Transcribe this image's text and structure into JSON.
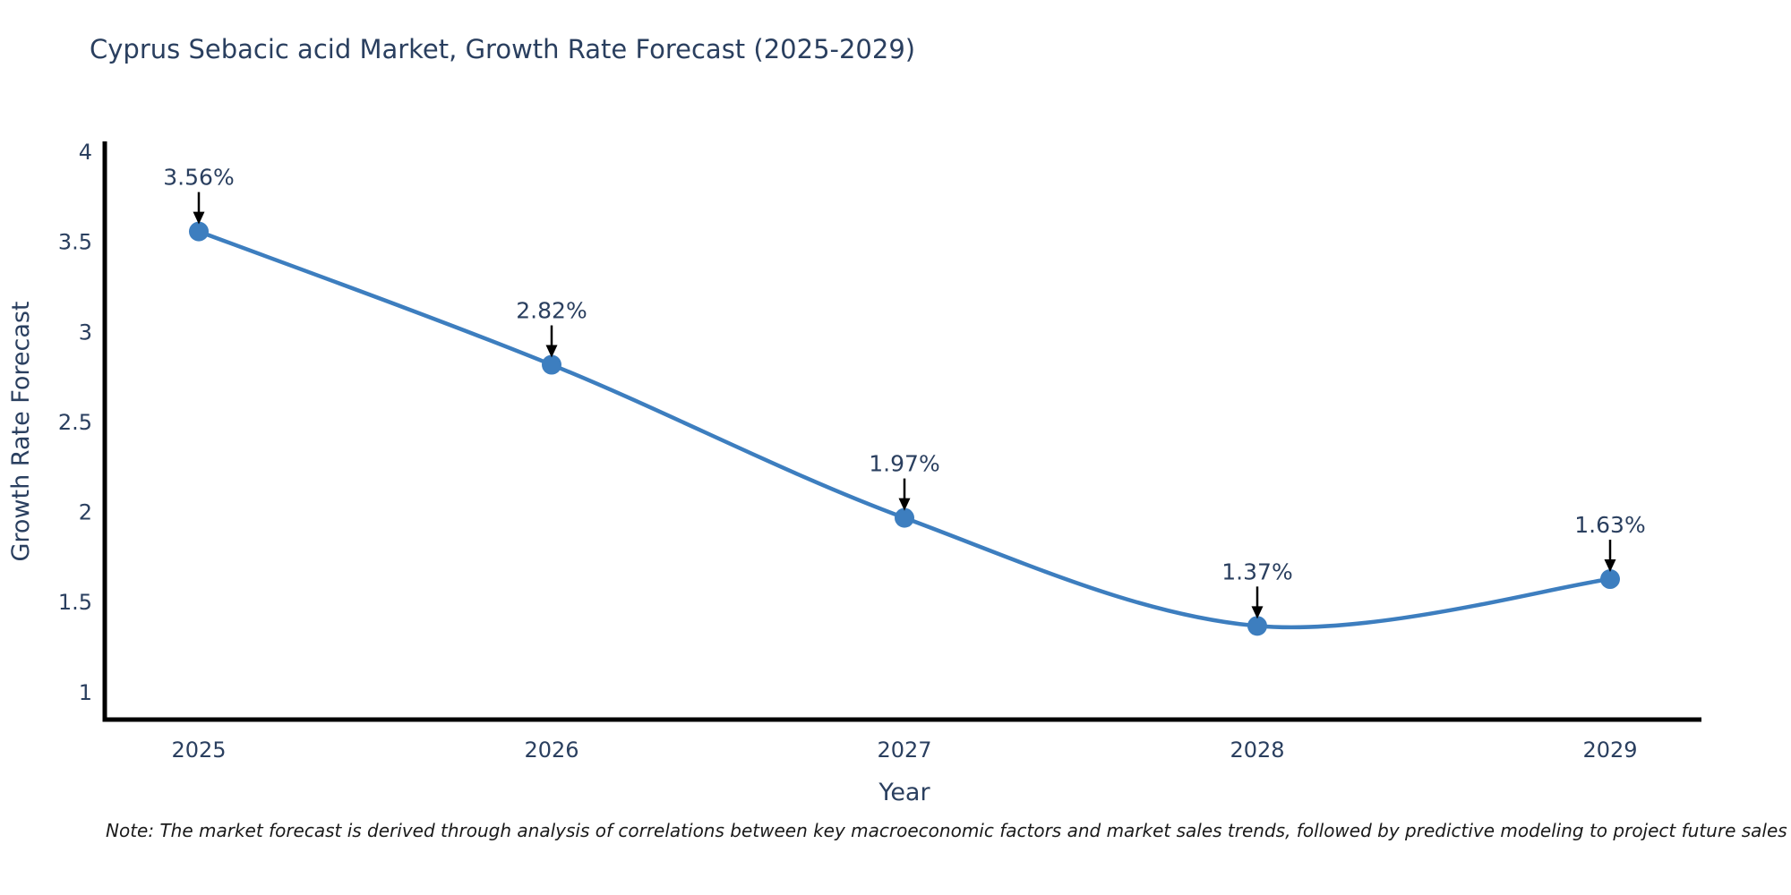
{
  "figure": {
    "title": "Cyprus Sebacic acid Market, Growth Rate Forecast (2025-2029)",
    "note": "Note: The market forecast is derived through analysis of correlations between key macroeconomic factors and market sales trends, followed by predictive modeling to project future sales"
  },
  "chart_data": {
    "type": "line",
    "line_shape": "spline",
    "title": "Cyprus Sebacic acid Market, Growth Rate Forecast (2025-2029)",
    "xlabel": "Year",
    "ylabel": "Growth Rate Forecast",
    "x": [
      2025,
      2026,
      2027,
      2028,
      2029
    ],
    "values": [
      3.56,
      2.82,
      1.97,
      1.37,
      1.63
    ],
    "point_labels": [
      "3.56%",
      "2.82%",
      "1.97%",
      "1.37%",
      "1.63%"
    ],
    "xticks": [
      "2025",
      "2026",
      "2027",
      "2028",
      "2029"
    ],
    "yticks": [
      4,
      3.5,
      3,
      2.5,
      2,
      1.5,
      1
    ],
    "ylim": [
      0.85,
      4.05
    ],
    "grid": false,
    "legend": "none",
    "annotations_arrow": true,
    "colors": {
      "line": "#3d7ebf",
      "marker": "#3d7ebf",
      "annotation": "#000000",
      "axis": "#000000",
      "text": "#2a3f5f"
    }
  }
}
